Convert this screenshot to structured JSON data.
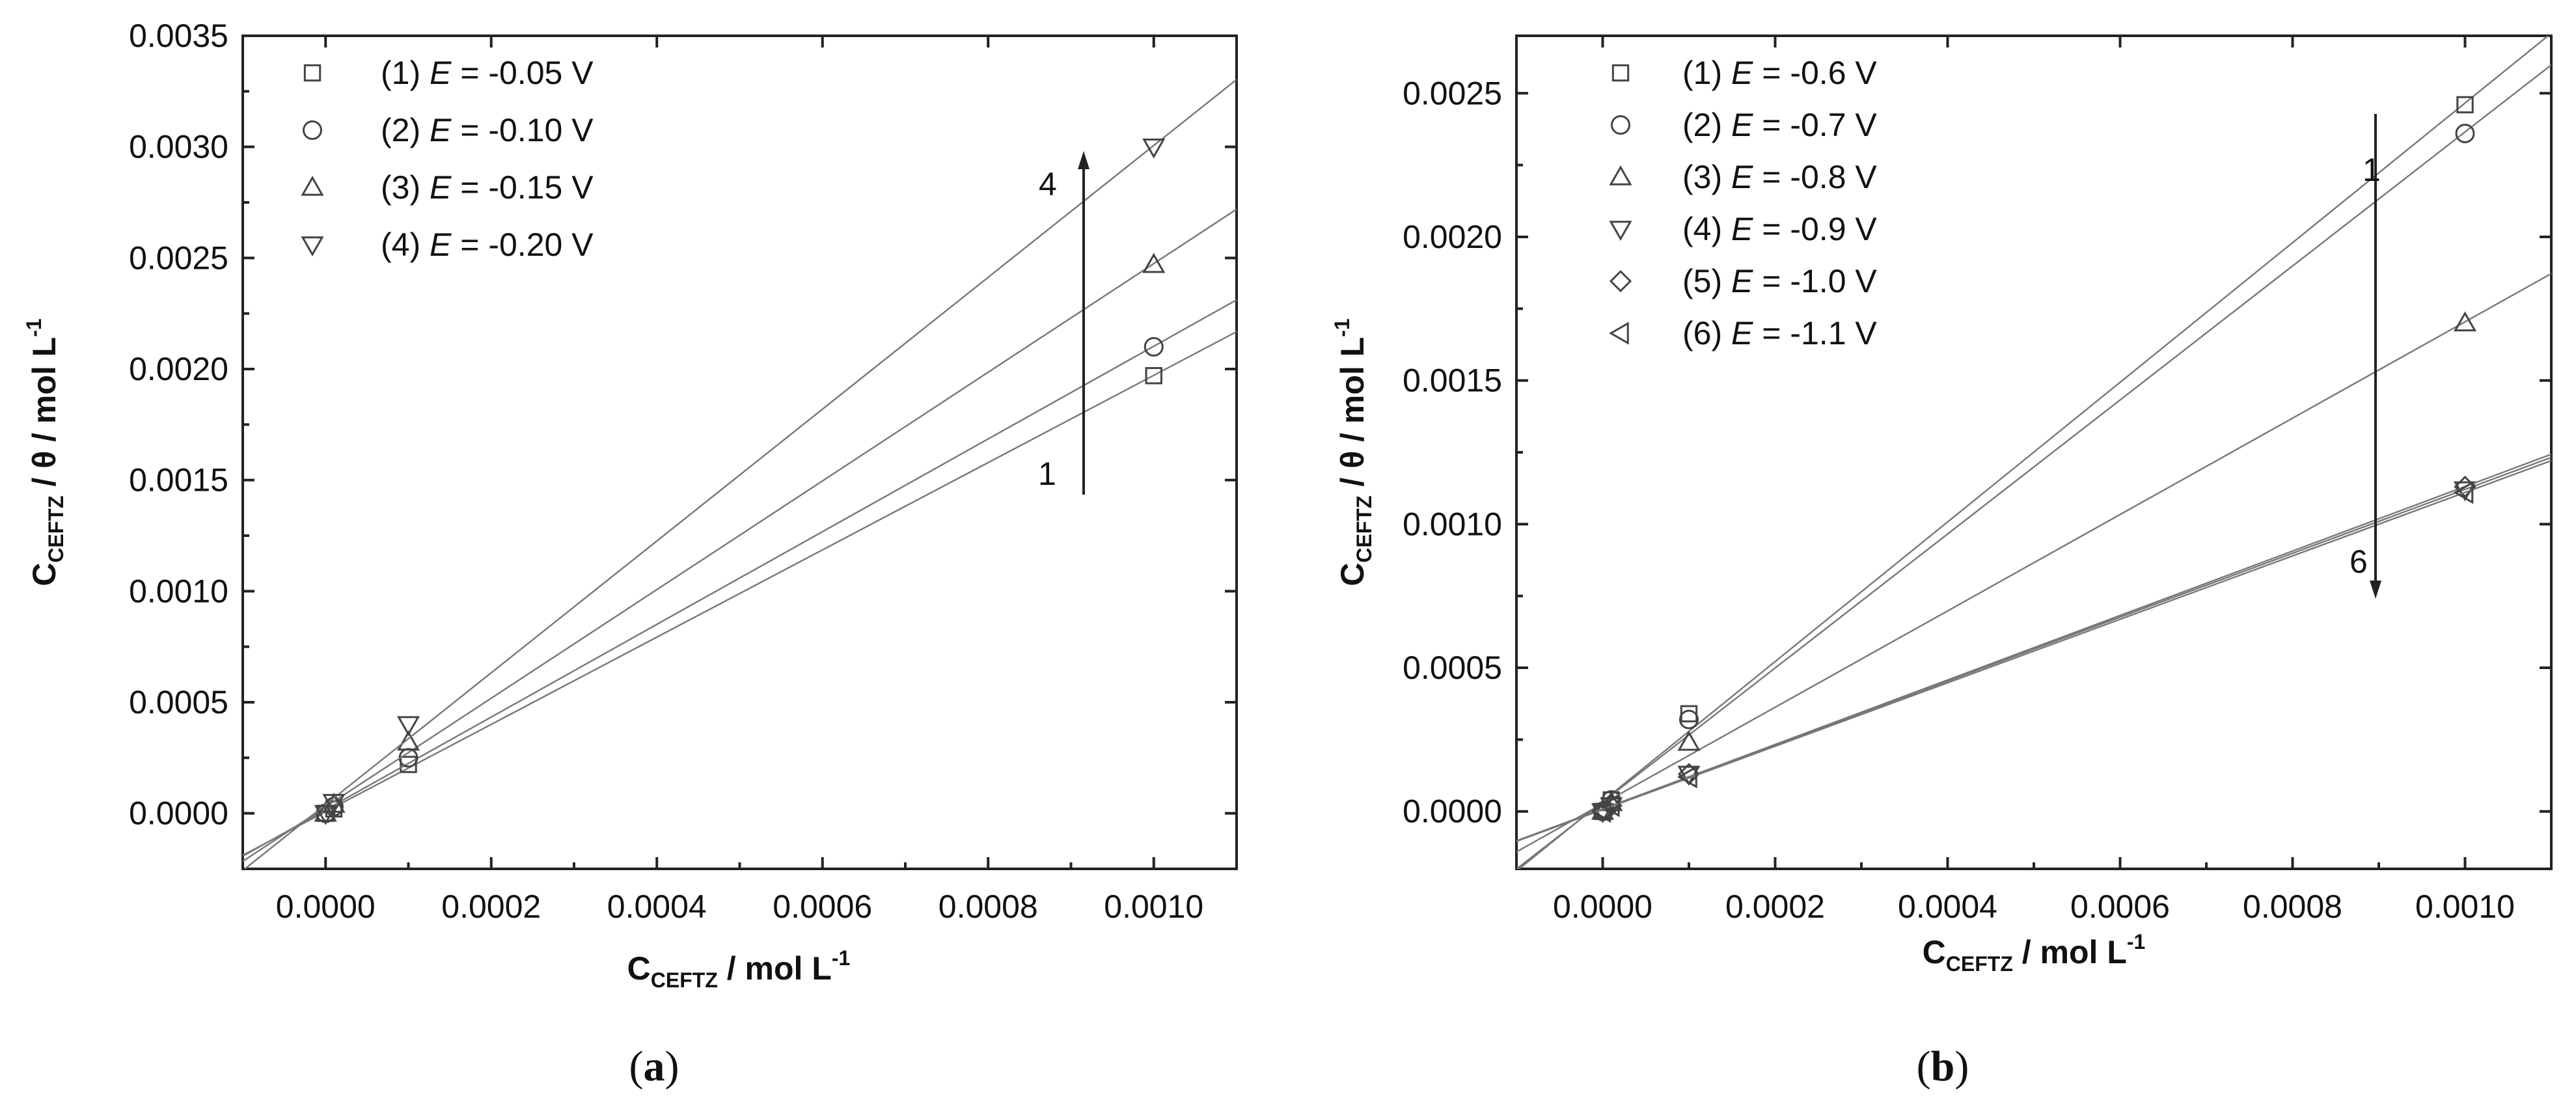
{
  "chart_data": [
    {
      "panel": "(a)",
      "type": "scatter",
      "xlabel": {
        "main": "C",
        "sub": "CEFTZ",
        "unit": " / mol L",
        "sup": "-1"
      },
      "ylabel": {
        "main": "C",
        "sub": "CEFTZ",
        "unit": " / θ / mol L",
        "sup": "-1"
      },
      "xlim": [
        -0.0001,
        0.0011
      ],
      "ylim": [
        -0.00025,
        0.0035
      ],
      "xticks": [
        "0.0000",
        "0.0002",
        "0.0004",
        "0.0006",
        "0.0008",
        "0.0010"
      ],
      "yticks": [
        "0.0000",
        "0.0005",
        "0.0010",
        "0.0015",
        "0.0020",
        "0.0025",
        "0.0030",
        "0.0035"
      ],
      "legend_position": "top-left",
      "arrow": {
        "from_label": "1",
        "to_label": "4",
        "direction": "up"
      },
      "series": [
        {
          "legend_num": "(1) ",
          "var": "E",
          "value": " = -0.05 V",
          "marker": "square",
          "x": [
            0.0,
            1e-05,
            0.0001,
            0.001
          ],
          "y": [
            0.0,
            2e-05,
            0.00022,
            0.00197
          ]
        },
        {
          "legend_num": "(2) ",
          "var": "E",
          "value": " = -0.10 V",
          "marker": "circle",
          "x": [
            0.0,
            1e-05,
            0.0001,
            0.001
          ],
          "y": [
            0.0,
            3e-05,
            0.00025,
            0.0021
          ]
        },
        {
          "legend_num": "(3) ",
          "var": "E",
          "value": " = -0.15 V",
          "marker": "triangle-up",
          "x": [
            0.0,
            1e-05,
            0.0001,
            0.001
          ],
          "y": [
            0.0,
            4e-05,
            0.00032,
            0.00247
          ]
        },
        {
          "legend_num": "(4) ",
          "var": "E",
          "value": " = -0.20 V",
          "marker": "triangle-down",
          "x": [
            0.0,
            1e-05,
            0.0001,
            0.001
          ],
          "y": [
            0.0,
            5e-05,
            0.0004,
            0.003
          ]
        }
      ]
    },
    {
      "panel": "(b)",
      "type": "scatter",
      "xlabel": {
        "main": "C",
        "sub": "CEFTZ",
        "unit": " / mol L",
        "sup": "-1"
      },
      "ylabel": {
        "main": "C",
        "sub": "CEFTZ",
        "unit": " / θ / mol L",
        "sup": "-1"
      },
      "xlim": [
        -0.0001,
        0.0011
      ],
      "ylim": [
        -0.0002,
        0.0027
      ],
      "xticks": [
        "0.0000",
        "0.0002",
        "0.0004",
        "0.0006",
        "0.0008",
        "0.0010"
      ],
      "yticks": [
        "0.0000",
        "0.0005",
        "0.0010",
        "0.0015",
        "0.0020",
        "0.0025"
      ],
      "legend_position": "top-left",
      "arrow": {
        "from_label": "1",
        "to_label": "6",
        "direction": "down"
      },
      "series": [
        {
          "legend_num": "(1) ",
          "var": "E",
          "value": " = -0.6 V",
          "marker": "square",
          "x": [
            0.0,
            1e-05,
            0.0001,
            0.001
          ],
          "y": [
            0.0,
            4e-05,
            0.00034,
            0.00246
          ]
        },
        {
          "legend_num": "(2) ",
          "var": "E",
          "value": " = -0.7 V",
          "marker": "circle",
          "x": [
            0.0,
            1e-05,
            0.0001,
            0.001
          ],
          "y": [
            0.0,
            4e-05,
            0.00032,
            0.00236
          ]
        },
        {
          "legend_num": "(3) ",
          "var": "E",
          "value": " = -0.8 V",
          "marker": "triangle-up",
          "x": [
            0.0,
            1e-05,
            0.0001,
            0.001
          ],
          "y": [
            0.0,
            3e-05,
            0.00024,
            0.0017
          ]
        },
        {
          "legend_num": "(4) ",
          "var": "E",
          "value": " = -0.9 V",
          "marker": "triangle-down",
          "x": [
            0.0,
            1e-05,
            0.0001,
            0.001
          ],
          "y": [
            0.0,
            2e-05,
            0.00013,
            0.00112
          ]
        },
        {
          "legend_num": "(5) ",
          "var": "E",
          "value": " = -1.0 V",
          "marker": "diamond",
          "x": [
            0.0,
            1e-05,
            0.0001,
            0.001
          ],
          "y": [
            0.0,
            2e-05,
            0.00013,
            0.00113
          ]
        },
        {
          "legend_num": "(6) ",
          "var": "E",
          "value": " = -1.1 V",
          "marker": "triangle-left",
          "x": [
            0.0,
            1e-05,
            0.0001,
            0.001
          ],
          "y": [
            0.0,
            2e-05,
            0.00012,
            0.00111
          ]
        }
      ]
    }
  ]
}
